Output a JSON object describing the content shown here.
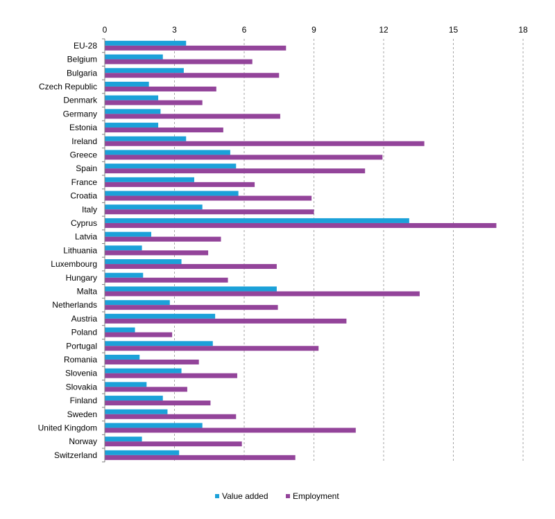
{
  "chart_data": {
    "type": "bar",
    "orientation": "horizontal",
    "categories": [
      "EU-28",
      "Belgium",
      "Bulgaria",
      "Czech Republic",
      "Denmark",
      "Germany",
      "Estonia",
      "Ireland",
      "Greece",
      "Spain",
      "France",
      "Croatia",
      "Italy",
      "Cyprus",
      "Latvia",
      "Lithuania",
      "Luxembourg",
      "Hungary",
      "Malta",
      "Netherlands",
      "Austria",
      "Poland",
      "Portugal",
      "Romania",
      "Slovenia",
      "Slovakia",
      "Finland",
      "Sweden",
      "United Kingdom",
      "Norway",
      "Switzerland"
    ],
    "series": [
      {
        "name": "Value added",
        "color": "#1ba1d9",
        "values": [
          3.5,
          2.5,
          3.4,
          1.9,
          2.3,
          2.4,
          2.3,
          3.5,
          5.4,
          5.65,
          3.85,
          5.75,
          4.2,
          13.1,
          2.0,
          1.6,
          3.3,
          1.65,
          7.4,
          2.8,
          4.75,
          1.3,
          4.65,
          1.5,
          3.3,
          1.8,
          2.5,
          2.7,
          4.2,
          1.6,
          3.2
        ]
      },
      {
        "name": "Employment",
        "color": "#93449a",
        "values": [
          7.8,
          6.35,
          7.5,
          4.8,
          4.2,
          7.55,
          5.1,
          13.75,
          11.95,
          11.2,
          6.45,
          8.9,
          9.0,
          16.85,
          5.0,
          4.45,
          7.4,
          5.3,
          13.55,
          7.45,
          10.4,
          2.9,
          9.2,
          4.05,
          5.7,
          3.55,
          4.55,
          5.65,
          10.8,
          5.9,
          8.2
        ]
      }
    ],
    "x_ticks": [
      0,
      3,
      6,
      9,
      12,
      15,
      18
    ],
    "xlim": [
      0,
      18
    ],
    "grid": "vertical dashed",
    "legend_position": "bottom"
  }
}
